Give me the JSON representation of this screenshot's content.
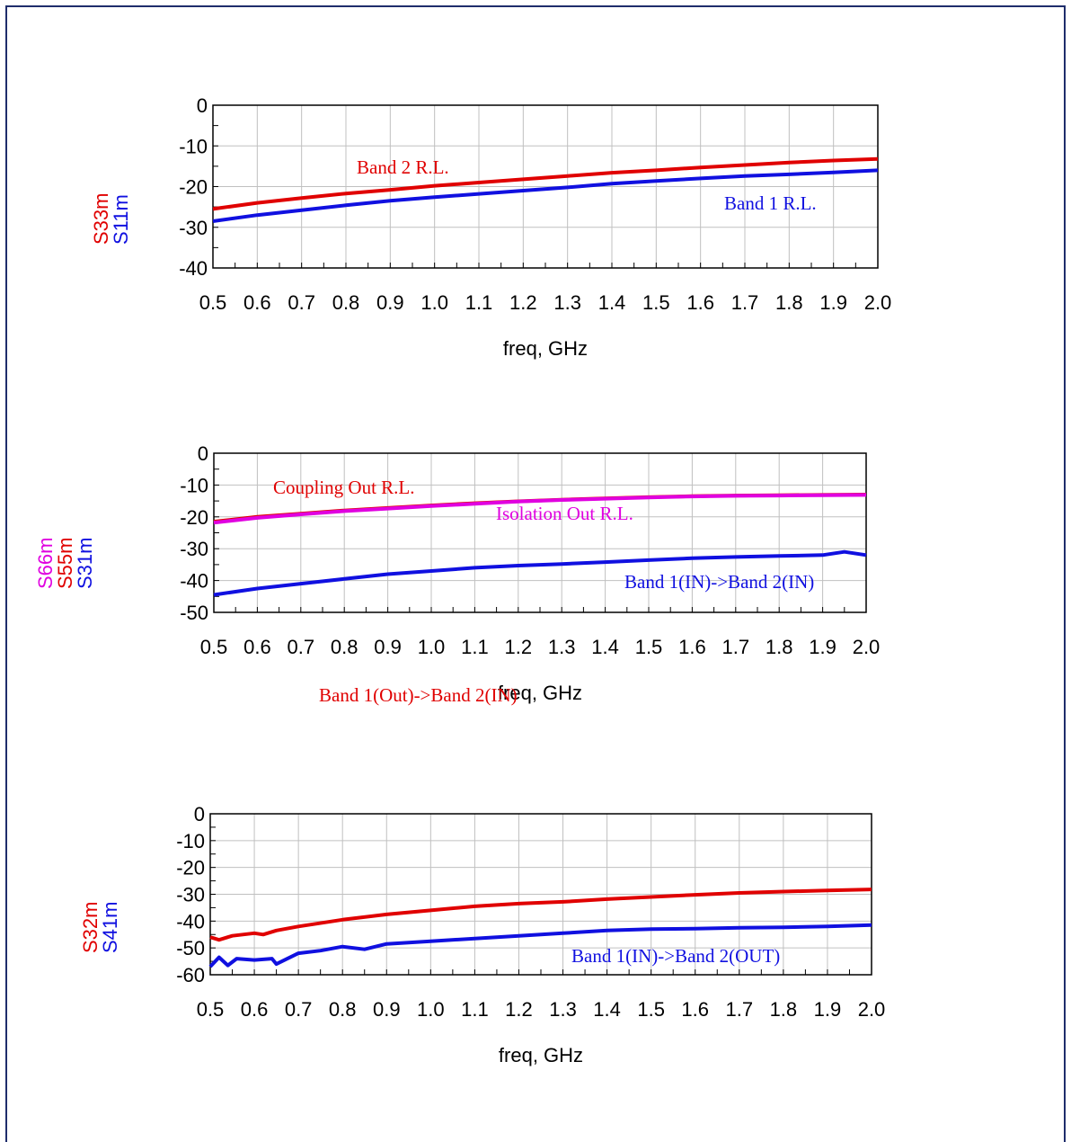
{
  "colors": {
    "frame": "#1f2d6b",
    "red": "#e00000",
    "blue": "#1010e0",
    "magenta": "#e000e0",
    "grid": "#c0c0c0"
  },
  "chart_data": [
    {
      "type": "line",
      "xlabel": "freq, GHz",
      "xlim": [
        0.5,
        2.0
      ],
      "ylim": [
        -40,
        0
      ],
      "x_ticks": [
        "0.5",
        "0.6",
        "0.7",
        "0.8",
        "0.9",
        "1.0",
        "1.1",
        "1.2",
        "1.3",
        "1.4",
        "1.5",
        "1.6",
        "1.7",
        "1.8",
        "1.9",
        "2.0"
      ],
      "y_ticks": [
        "0",
        "-10",
        "-20",
        "-30",
        "-40"
      ],
      "grid": true,
      "series": [
        {
          "name": "S11m",
          "color": "blue",
          "x": [
            0.5,
            0.6,
            0.7,
            0.8,
            0.9,
            1.0,
            1.1,
            1.2,
            1.3,
            1.4,
            1.5,
            1.6,
            1.7,
            1.8,
            1.9,
            2.0
          ],
          "y": [
            -28.5,
            -27.0,
            -25.8,
            -24.6,
            -23.5,
            -22.6,
            -21.8,
            -21.0,
            -20.2,
            -19.3,
            -18.6,
            -18.0,
            -17.4,
            -17.0,
            -16.5,
            -16.0
          ]
        },
        {
          "name": "S33m",
          "color": "red",
          "x": [
            0.5,
            0.6,
            0.7,
            0.8,
            0.9,
            1.0,
            1.1,
            1.2,
            1.3,
            1.4,
            1.5,
            1.6,
            1.7,
            1.8,
            1.9,
            2.0
          ],
          "y": [
            -25.5,
            -24.0,
            -22.8,
            -21.7,
            -20.8,
            -19.8,
            -19.0,
            -18.2,
            -17.4,
            -16.6,
            -16.0,
            -15.3,
            -14.7,
            -14.1,
            -13.6,
            -13.2
          ]
        }
      ],
      "annotations": [
        {
          "text": "Band 2 R.L.",
          "color": "red"
        },
        {
          "text": "Band 1 R.L.",
          "color": "blue"
        }
      ]
    },
    {
      "type": "line",
      "xlabel": "freq, GHz",
      "xlim": [
        0.5,
        2.0
      ],
      "ylim": [
        -50,
        0
      ],
      "x_ticks": [
        "0.5",
        "0.6",
        "0.7",
        "0.8",
        "0.9",
        "1.0",
        "1.1",
        "1.2",
        "1.3",
        "1.4",
        "1.5",
        "1.6",
        "1.7",
        "1.8",
        "1.9",
        "2.0"
      ],
      "y_ticks": [
        "0",
        "-10",
        "-20",
        "-30",
        "-40",
        "-50"
      ],
      "grid": true,
      "series": [
        {
          "name": "S31m",
          "color": "blue",
          "x": [
            0.5,
            0.6,
            0.7,
            0.8,
            0.9,
            1.0,
            1.1,
            1.2,
            1.3,
            1.4,
            1.5,
            1.6,
            1.7,
            1.8,
            1.9,
            1.95,
            2.0
          ],
          "y": [
            -44.5,
            -42.5,
            -41.0,
            -39.5,
            -38.0,
            -37.0,
            -36.0,
            -35.3,
            -34.8,
            -34.2,
            -33.6,
            -33.0,
            -32.6,
            -32.3,
            -32.0,
            -31.0,
            -32.0
          ]
        },
        {
          "name": "S55m",
          "color": "red",
          "x": [
            0.5,
            0.6,
            0.7,
            0.8,
            0.9,
            1.0,
            1.1,
            1.2,
            1.3,
            1.4,
            1.5,
            1.6,
            1.7,
            1.8,
            1.9,
            2.0
          ],
          "y": [
            -21.5,
            -20.0,
            -19.0,
            -18.0,
            -17.2,
            -16.4,
            -15.7,
            -15.1,
            -14.6,
            -14.2,
            -13.8,
            -13.5,
            -13.3,
            -13.2,
            -13.1,
            -13.0
          ]
        },
        {
          "name": "S66m",
          "color": "magenta",
          "x": [
            0.5,
            0.6,
            0.7,
            0.8,
            0.9,
            1.0,
            1.1,
            1.2,
            1.3,
            1.4,
            1.5,
            1.6,
            1.7,
            1.8,
            1.9,
            2.0
          ],
          "y": [
            -21.8,
            -20.3,
            -19.2,
            -18.2,
            -17.4,
            -16.6,
            -15.9,
            -15.2,
            -14.7,
            -14.3,
            -13.9,
            -13.6,
            -13.4,
            -13.3,
            -13.2,
            -13.1
          ]
        }
      ],
      "annotations": [
        {
          "text": "Coupling Out R.L.",
          "color": "red"
        },
        {
          "text": "Isolation Out R.L.",
          "color": "magenta"
        },
        {
          "text": "Band 1(IN)->Band 2(IN)",
          "color": "blue"
        }
      ]
    },
    {
      "type": "line",
      "xlabel": "freq, GHz",
      "xlim": [
        0.5,
        2.0
      ],
      "ylim": [
        -60,
        0
      ],
      "x_ticks": [
        "0.5",
        "0.6",
        "0.7",
        "0.8",
        "0.9",
        "1.0",
        "1.1",
        "1.2",
        "1.3",
        "1.4",
        "1.5",
        "1.6",
        "1.7",
        "1.8",
        "1.9",
        "2.0"
      ],
      "y_ticks": [
        "0",
        "-10",
        "-20",
        "-30",
        "-40",
        "-50",
        "-60"
      ],
      "grid": true,
      "series": [
        {
          "name": "S41m",
          "color": "blue",
          "x": [
            0.5,
            0.52,
            0.54,
            0.56,
            0.6,
            0.64,
            0.65,
            0.7,
            0.75,
            0.8,
            0.85,
            0.9,
            1.0,
            1.1,
            1.2,
            1.3,
            1.4,
            1.5,
            1.6,
            1.7,
            1.8,
            1.9,
            2.0
          ],
          "y": [
            -57.0,
            -53.5,
            -56.5,
            -54.0,
            -54.5,
            -54.0,
            -56.0,
            -52.0,
            -51.0,
            -49.5,
            -50.5,
            -48.5,
            -47.5,
            -46.5,
            -45.5,
            -44.5,
            -43.5,
            -43.0,
            -42.8,
            -42.5,
            -42.3,
            -42.0,
            -41.5
          ]
        },
        {
          "name": "S32m",
          "color": "red",
          "x": [
            0.5,
            0.52,
            0.55,
            0.6,
            0.62,
            0.65,
            0.7,
            0.8,
            0.9,
            1.0,
            1.1,
            1.2,
            1.3,
            1.4,
            1.5,
            1.6,
            1.7,
            1.8,
            1.9,
            2.0
          ],
          "y": [
            -46.0,
            -47.0,
            -45.5,
            -44.5,
            -45.0,
            -43.5,
            -42.0,
            -39.5,
            -37.5,
            -36.0,
            -34.5,
            -33.5,
            -32.8,
            -31.8,
            -31.0,
            -30.2,
            -29.5,
            -29.0,
            -28.6,
            -28.2
          ]
        }
      ],
      "annotations": [
        {
          "text": "Band 1(Out)->Band 2(IN)",
          "color": "red"
        },
        {
          "text": "Band 1(IN)->Band 2(OUT)",
          "color": "blue"
        }
      ]
    }
  ]
}
